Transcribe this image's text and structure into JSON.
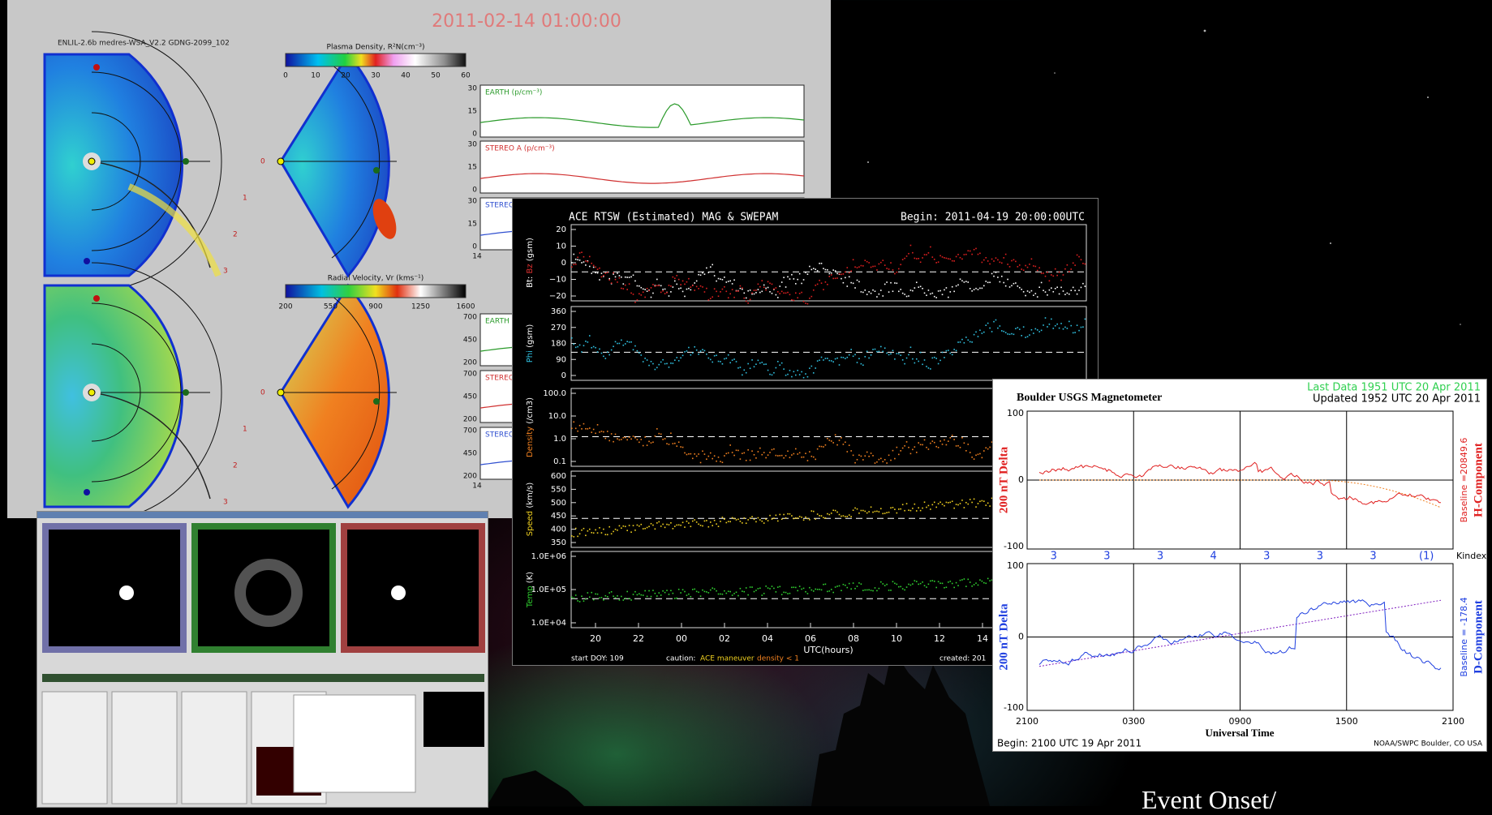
{
  "enlil": {
    "timestamp": "2011-02-14 01:00:00",
    "model": "ENLIL-2.6b medres-WSA_V2.2 GDNG-2099_102",
    "density": {
      "title": "Plasma Density, R²N(cm⁻³)",
      "ticks": [
        "0",
        "10",
        "20",
        "30",
        "40",
        "50",
        "60"
      ]
    },
    "velocity": {
      "title": "Radial Velocity, Vr (kms⁻¹)",
      "ticks": [
        "200",
        "550",
        "900",
        "1250",
        "1600"
      ]
    },
    "upper_series": [
      {
        "label": "EARTH (p/cm⁻³)",
        "color": "#2a9a2a",
        "ticks": [
          "30",
          "15",
          "0"
        ]
      },
      {
        "label": "STEREO A (p/cm⁻³)",
        "color": "#d03030",
        "ticks": [
          "30",
          "15",
          "0"
        ]
      },
      {
        "label": "STEREO",
        "color": "#3050d0",
        "ticks": [
          "30",
          "15",
          "0"
        ]
      }
    ],
    "lower_series": [
      {
        "label": "EARTH",
        "color": "#2a9a2a",
        "ticks": [
          "700",
          "450",
          "200"
        ]
      },
      {
        "label": "STEREO",
        "color": "#d03030",
        "ticks": [
          "700",
          "450",
          "200"
        ]
      },
      {
        "label": "STEREO",
        "color": "#3050d0",
        "ticks": [
          "700",
          "450",
          "200"
        ]
      }
    ],
    "axis_start": "14",
    "ring_labels": [
      "0",
      "1",
      "2",
      "3"
    ]
  },
  "ace": {
    "title": "ACE RTSW (Estimated) MAG & SWEPAM",
    "begin": "Begin: 2011-04-19 20:00:00UTC",
    "panels": [
      {
        "label": [
          {
            "text": "Bt: ",
            "color": "#ffffff"
          },
          {
            "text": "Bz",
            "color": "#e03030"
          },
          {
            "text": " (gsm)",
            "color": "#ffffff"
          }
        ],
        "ticks": [
          "20",
          "10",
          "0",
          "−10",
          "−20"
        ],
        "colors": [
          "#ffffff",
          "#e02020"
        ]
      },
      {
        "label": [
          {
            "text": "Phi",
            "color": "#30c0e0"
          },
          {
            "text": " (gsm)",
            "color": "#ffffff"
          }
        ],
        "ticks": [
          "360",
          "270",
          "180",
          "90",
          "0"
        ],
        "colors": [
          "#30c0e0"
        ]
      },
      {
        "label": [
          {
            "text": "Density",
            "color": "#f08020"
          },
          {
            "text": " (/cm3)",
            "color": "#ffffff"
          }
        ],
        "ticks": [
          "100.0",
          "10.0",
          "1.0",
          "0.1"
        ],
        "colors": [
          "#f08020"
        ]
      },
      {
        "label": [
          {
            "text": "Speed",
            "color": "#f0d020"
          },
          {
            "text": " (km/s)",
            "color": "#ffffff"
          }
        ],
        "ticks": [
          "600",
          "550",
          "500",
          "450",
          "400",
          "350"
        ],
        "colors": [
          "#f0d020"
        ]
      },
      {
        "label": [
          {
            "text": "Temp",
            "color": "#30d030"
          },
          {
            "text": " (K)",
            "color": "#ffffff"
          }
        ],
        "ticks": [
          "1.0E+06",
          "1.0E+05",
          "1.0E+04"
        ],
        "colors": [
          "#30d030"
        ]
      }
    ],
    "xticks": [
      "20",
      "22",
      "00",
      "02",
      "04",
      "06",
      "08",
      "10",
      "12",
      "14"
    ],
    "xlabel": "UTC(hours)",
    "start": "start DOY: 109",
    "caution": "caution:",
    "maneuver": "ACE maneuver",
    "density_note": "density < 1",
    "created": "created: 201"
  },
  "mag": {
    "title": "Boulder USGS Magnetometer",
    "last": "Last Data 1951 UTC 20 Apr 2011",
    "updated": "Updated 1952 UTC 20 Apr 2011",
    "h": {
      "ylabel": "200 nT Delta",
      "baseline": "Baseline =20849.6",
      "component": "H-Component",
      "color": "#e02020",
      "ticks": [
        "100",
        "0",
        "-100"
      ]
    },
    "d": {
      "ylabel": "200 nT Delta",
      "baseline": "Baseline = -178.4",
      "component": "D-Component",
      "color": "#2040e0",
      "ticks": [
        "100",
        "0",
        "-100"
      ]
    },
    "kindex": [
      "3",
      "3",
      "3",
      "4",
      "3",
      "3",
      "3",
      "(1)"
    ],
    "kindex_label": "Kindex",
    "xticks": [
      "2100",
      "0300",
      "0900",
      "1500",
      "2100"
    ],
    "xlabel": "Universal Time",
    "begin": "Begin: 2100 UTC 19 Apr 2011",
    "credit": "NOAA/SWPC Boulder, CO USA"
  },
  "caption": "Event Onset/"
}
